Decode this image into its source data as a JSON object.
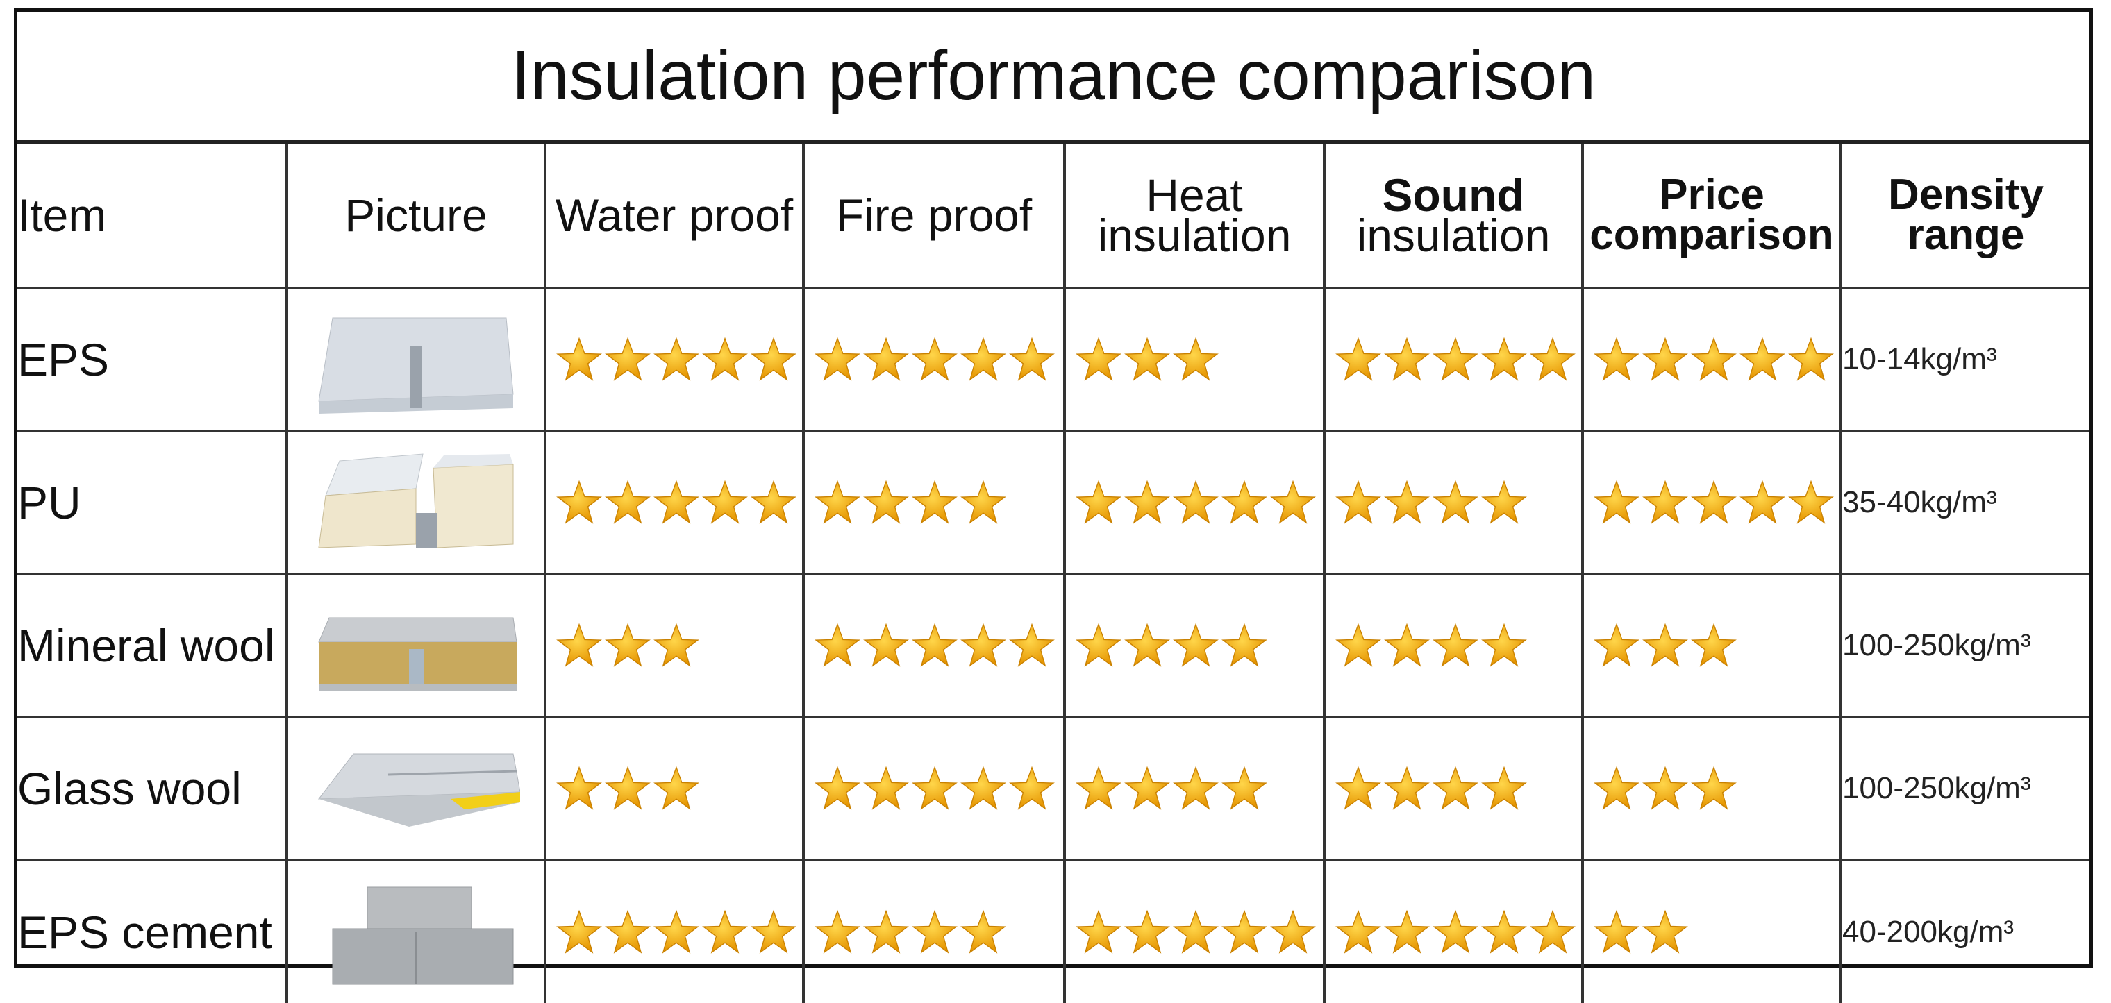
{
  "title": "Insulation performance comparison",
  "headers": {
    "item": "Item",
    "picture": "Picture",
    "water": "Water proof",
    "fire": "Fire proof",
    "heat_1": "Heat",
    "heat_2": "insulation",
    "sound_1": "Sound",
    "sound_2": "insulation",
    "price_1": "Price",
    "price_2": "comparison",
    "density_1": "Density",
    "density_2": "range"
  },
  "colors": {
    "star_fill": "#f5b301",
    "star_dark": "#e59400",
    "star_light": "#ffd64a"
  },
  "rows": [
    {
      "name": "EPS",
      "ratings": [
        5,
        5,
        3,
        5,
        5
      ],
      "density": "10-14kg/m³",
      "picture_icon": "eps-panel-icon"
    },
    {
      "name": "PU",
      "ratings": [
        5,
        4,
        5,
        4,
        5
      ],
      "density": "35-40kg/m³",
      "picture_icon": "pu-panel-icon"
    },
    {
      "name": "Mineral wool",
      "ratings": [
        3,
        5,
        4,
        4,
        3
      ],
      "density": "100-250kg/m³",
      "picture_icon": "mineral-wool-panel-icon"
    },
    {
      "name": "Glass wool",
      "ratings": [
        3,
        5,
        4,
        4,
        3
      ],
      "density": "100-250kg/m³",
      "picture_icon": "glass-wool-panel-icon"
    },
    {
      "name": "EPS cement",
      "ratings": [
        5,
        4,
        5,
        5,
        2
      ],
      "density": "40-200kg/m³",
      "picture_icon": "eps-cement-panel-icon"
    }
  ]
}
